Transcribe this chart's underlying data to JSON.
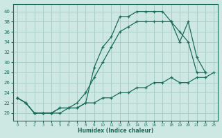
{
  "xlabel": "Humidex (Indice chaleur)",
  "bg_color": "#cde8e2",
  "grid_color": "#aacec7",
  "line_color": "#1a6b5a",
  "xlim": [
    -0.5,
    23.5
  ],
  "ylim": [
    18.5,
    41.5
  ],
  "yticks": [
    20,
    22,
    24,
    26,
    28,
    30,
    32,
    34,
    36,
    38,
    40
  ],
  "xticks": [
    0,
    1,
    2,
    3,
    4,
    5,
    6,
    7,
    8,
    9,
    10,
    11,
    12,
    13,
    14,
    15,
    16,
    17,
    18,
    19,
    20,
    21,
    22,
    23
  ],
  "curveA_x": [
    0,
    1,
    2,
    3,
    4,
    5,
    6,
    7,
    8,
    9,
    10,
    11,
    12,
    13,
    14,
    15,
    16,
    17,
    18,
    19,
    20,
    21,
    22
  ],
  "curveA_y": [
    23,
    22,
    20,
    20,
    20,
    21,
    21,
    21,
    22,
    29,
    33,
    35,
    39,
    39,
    40,
    40,
    40,
    40,
    38,
    34,
    38,
    31,
    28
  ],
  "curveB_x": [
    0,
    1,
    2,
    3,
    4,
    5,
    6,
    7,
    8,
    9,
    10,
    11,
    12,
    13,
    14,
    15,
    16,
    17,
    18,
    19,
    20,
    21,
    22
  ],
  "curveB_y": [
    23,
    22,
    20,
    20,
    20,
    21,
    21,
    22,
    24,
    27,
    30,
    33,
    36,
    37,
    38,
    38,
    38,
    38,
    38,
    36,
    34,
    28,
    28
  ],
  "curveC_x": [
    0,
    1,
    2,
    3,
    4,
    5,
    6,
    7,
    8,
    9,
    10,
    11,
    12,
    13,
    14,
    15,
    16,
    17,
    18,
    19,
    20,
    21,
    22,
    23
  ],
  "curveC_y": [
    23,
    22,
    20,
    20,
    20,
    20,
    21,
    21,
    22,
    22,
    23,
    23,
    24,
    24,
    25,
    25,
    26,
    26,
    27,
    26,
    26,
    27,
    27,
    28
  ]
}
